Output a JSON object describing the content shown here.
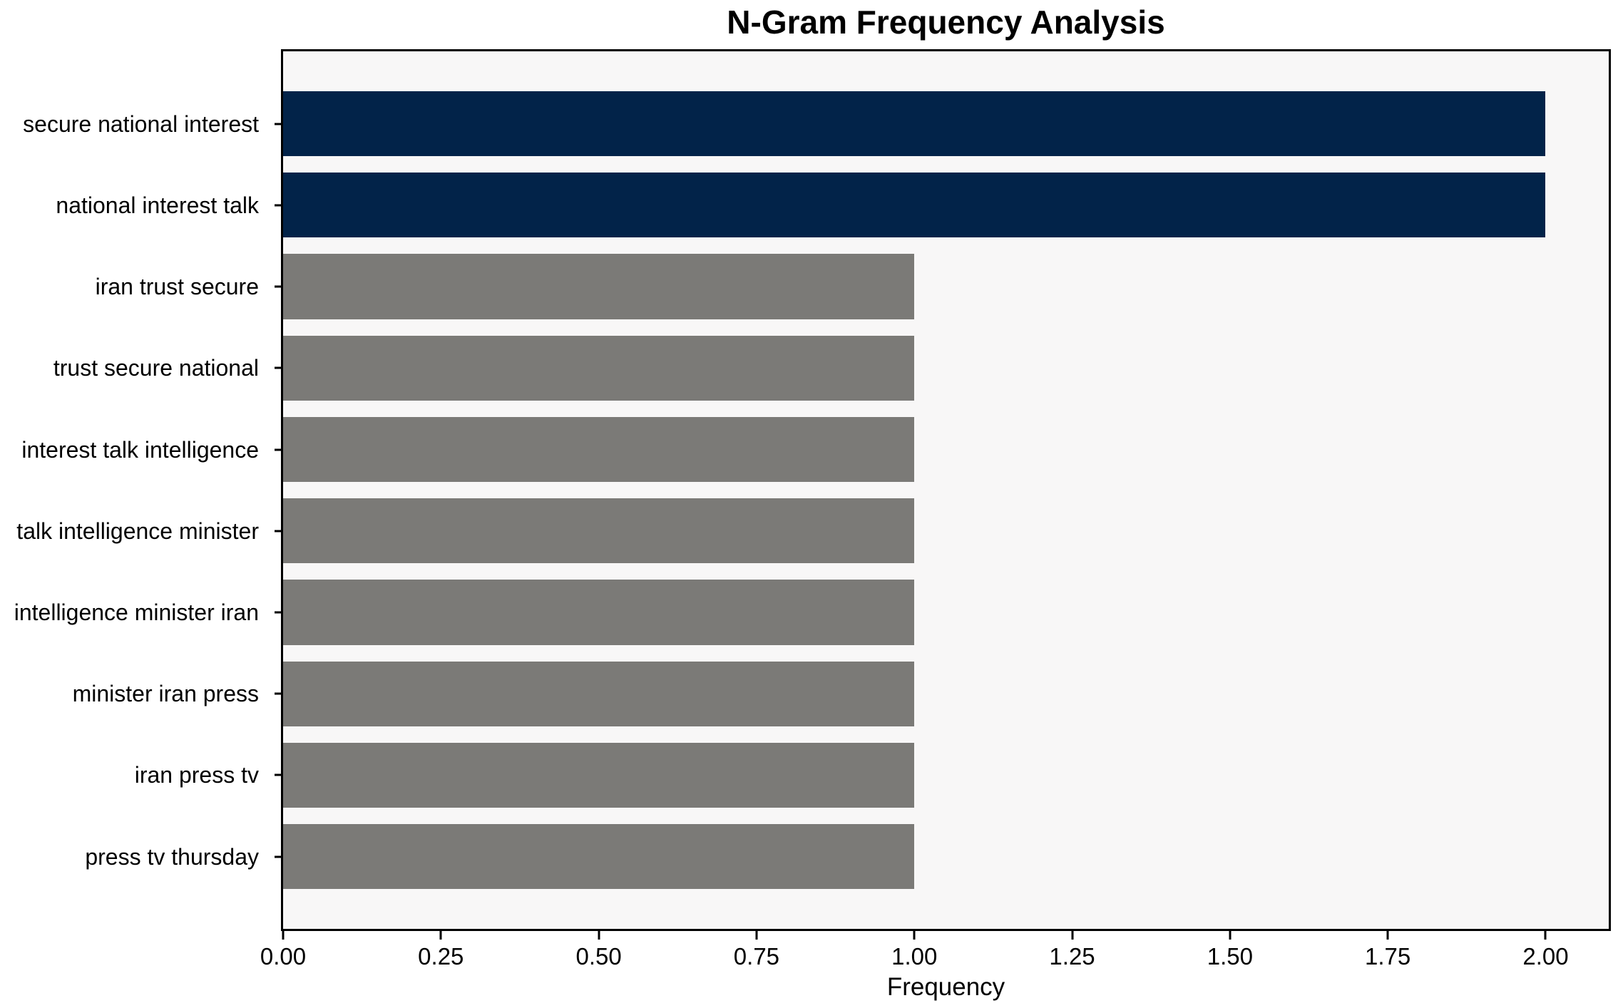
{
  "chart_data": {
    "type": "bar",
    "orientation": "horizontal",
    "title": "N-Gram Frequency Analysis",
    "xlabel": "Frequency",
    "ylabel": "",
    "categories": [
      "secure national interest",
      "national interest talk",
      "iran trust secure",
      "trust secure national",
      "interest talk intelligence",
      "talk intelligence minister",
      "intelligence minister iran",
      "minister iran press",
      "iran press tv",
      "press tv thursday"
    ],
    "values": [
      2,
      2,
      1,
      1,
      1,
      1,
      1,
      1,
      1,
      1
    ],
    "bar_colors": [
      "#022349",
      "#022349",
      "#7b7a77",
      "#7b7a77",
      "#7b7a77",
      "#7b7a77",
      "#7b7a77",
      "#7b7a77",
      "#7b7a77",
      "#7b7a77"
    ],
    "xlim": [
      0,
      2.1
    ],
    "xticks": [
      0.0,
      0.25,
      0.5,
      0.75,
      1.0,
      1.25,
      1.5,
      1.75,
      2.0
    ],
    "xtick_labels": [
      "0.00",
      "0.25",
      "0.50",
      "0.75",
      "1.00",
      "1.25",
      "1.50",
      "1.75",
      "2.00"
    ],
    "grid": false,
    "legend_position": "none",
    "colors": {
      "highlight_bar": "#022349",
      "default_bar": "#7b7a77",
      "plot_background": "#f8f7f7",
      "figure_background": "#ffffff",
      "spine": "#000000",
      "text": "#000000"
    }
  }
}
